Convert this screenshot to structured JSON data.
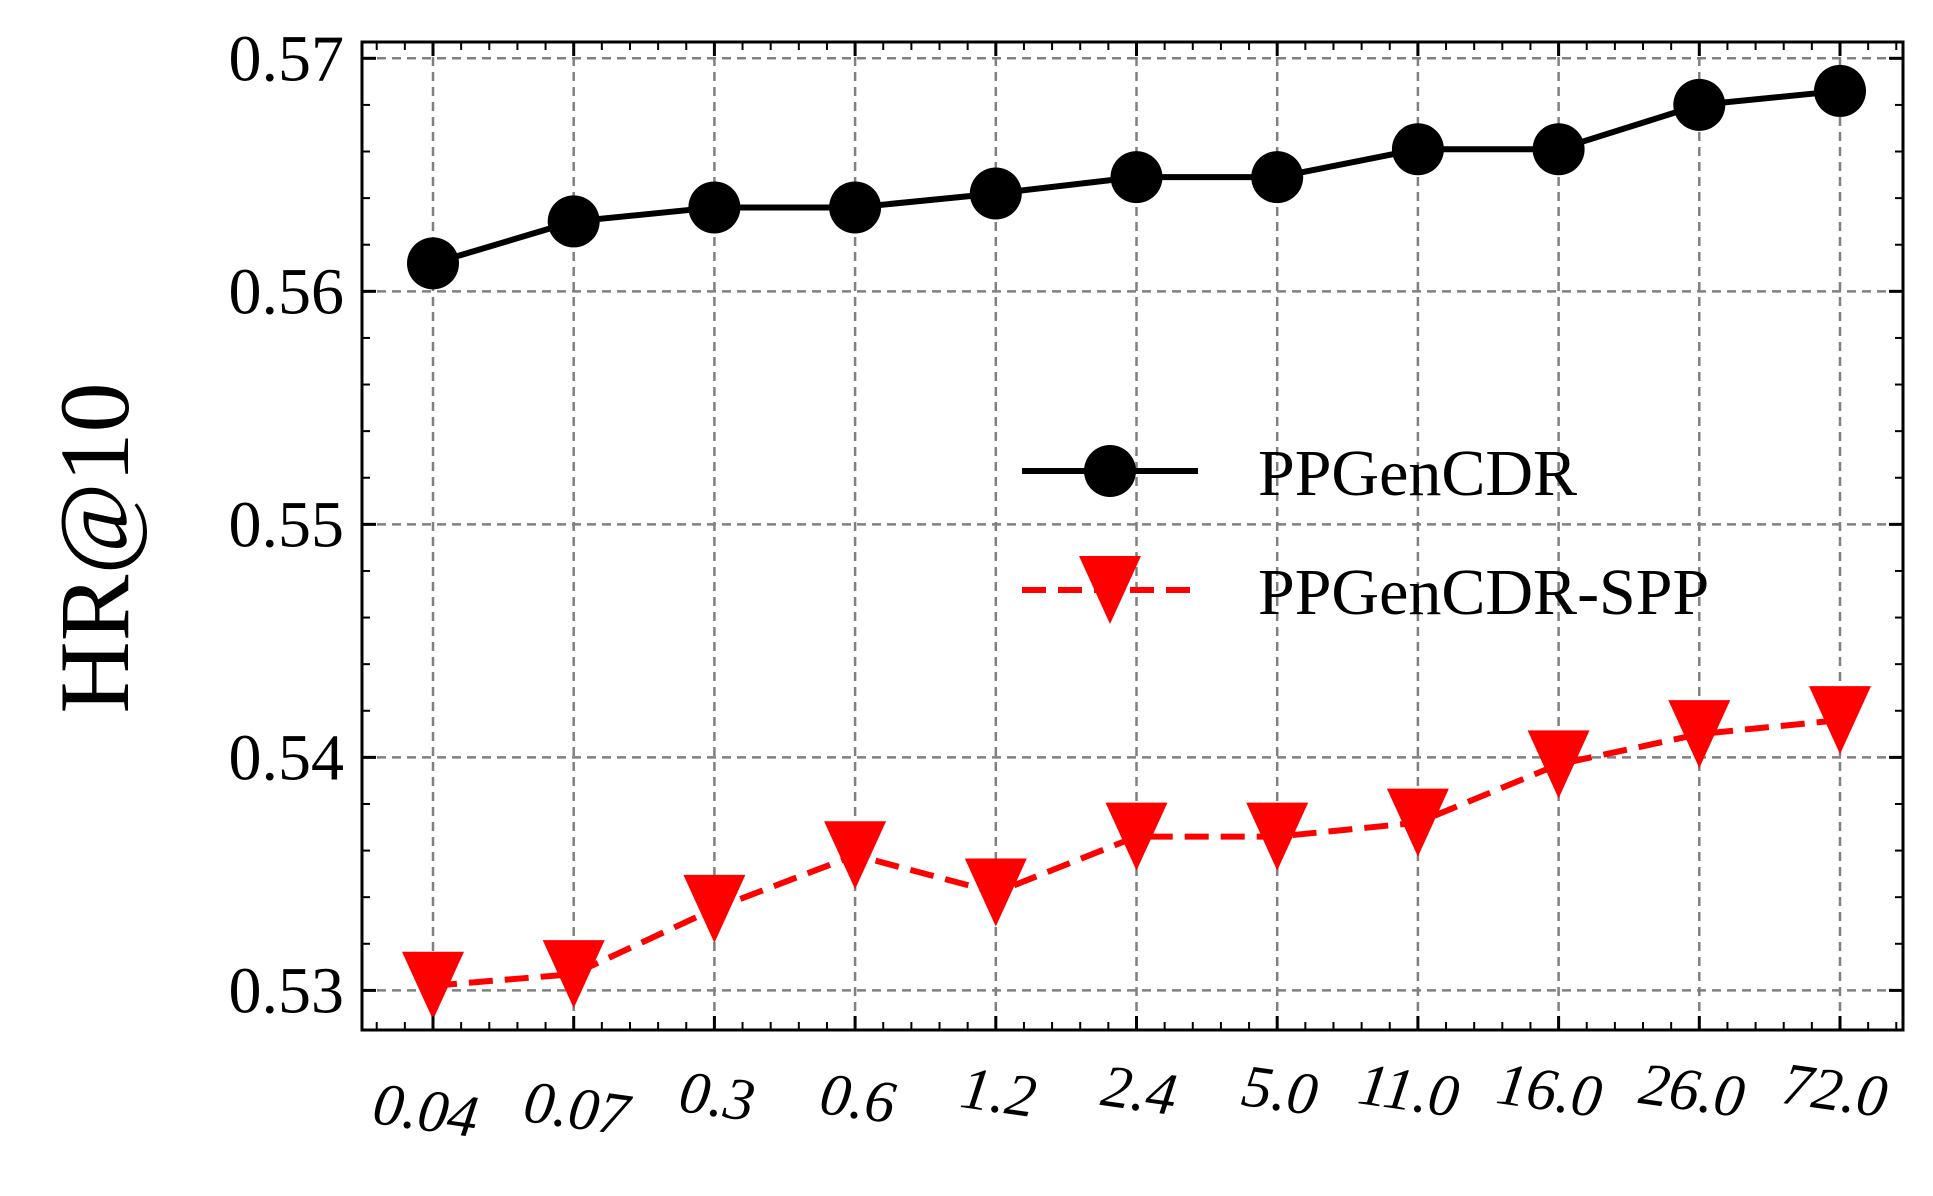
{
  "chart_data": {
    "type": "line",
    "title": "",
    "xlabel": "",
    "ylabel": "HR@10",
    "categories": [
      "0.04",
      "0.07",
      "0.3",
      "0.6",
      "1.2",
      "2.4",
      "5.0",
      "11.0",
      "16.0",
      "26.0",
      "72.0"
    ],
    "ylim": [
      0.5283,
      0.5707
    ],
    "yticks": [
      "0.53",
      "0.54",
      "0.55",
      "0.56",
      "0.57"
    ],
    "ytick_values": [
      0.53,
      0.54,
      0.55,
      0.56,
      0.57
    ],
    "grid": true,
    "legend_position": "center-right",
    "series": [
      {
        "name": "PPGenCDR",
        "values": [
          0.5612,
          0.563,
          0.5636,
          0.5636,
          0.5642,
          0.5649,
          0.5649,
          0.5661,
          0.5661,
          0.568,
          0.5686
        ],
        "color": "#000000",
        "marker": "circle",
        "line_style": "solid"
      },
      {
        "name": "PPGenCDR-SPP",
        "values": [
          0.5302,
          0.5307,
          0.5335,
          0.5358,
          0.5342,
          0.5366,
          0.5366,
          0.5372,
          0.5397,
          0.541,
          0.5416
        ],
        "color": "#ff0000",
        "marker": "triangle-down",
        "line_style": "dashed"
      }
    ]
  }
}
